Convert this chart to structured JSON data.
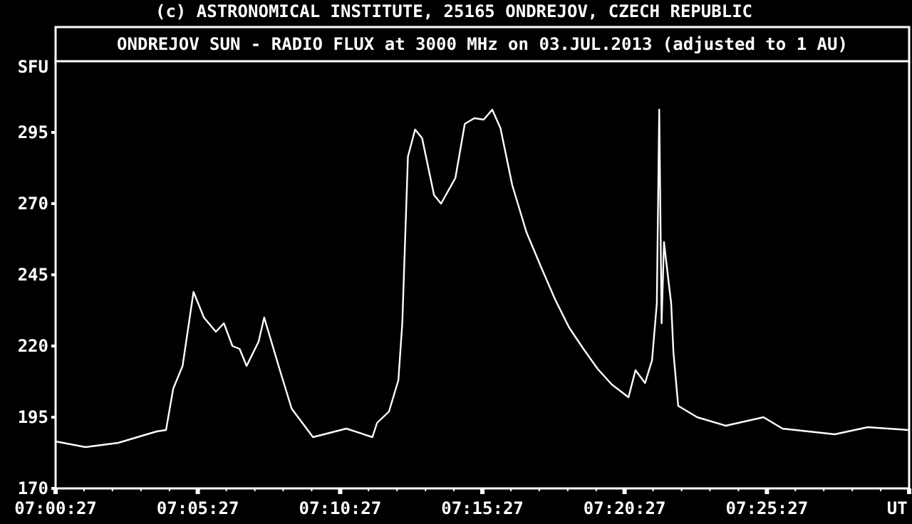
{
  "chart_data": {
    "type": "line",
    "title": "ONDREJOV SUN - RADIO FLUX at 3000 MHz on 03.JUL.2013 (adjusted to 1 AU)",
    "ylabel": "SFU",
    "annotations": [
      "(c) ASTRONOMICAL INSTITUTE, 25165 ONDREJOV, CZECH REPUBLIC"
    ],
    "x": [
      7.0075,
      7.025,
      7.0442,
      7.0667,
      7.0722,
      7.0764,
      7.0819,
      7.0883,
      7.0944,
      7.1014,
      7.1061,
      7.1111,
      7.1153,
      7.1194,
      7.1264,
      7.1297,
      7.1389,
      7.1458,
      7.1583,
      7.1778,
      7.1931,
      7.1958,
      7.2028,
      7.2083,
      7.2106,
      7.2139,
      7.2181,
      7.2222,
      7.2292,
      7.2333,
      7.2417,
      7.2472,
      7.2528,
      7.2583,
      7.2633,
      7.2681,
      7.275,
      7.2833,
      7.2917,
      7.3,
      7.3083,
      7.3167,
      7.325,
      7.3333,
      7.3431,
      7.3472,
      7.3528,
      7.3569,
      7.3597,
      7.3611,
      7.3625,
      7.3639,
      7.3661,
      7.3681,
      7.3694,
      7.3722,
      7.3833,
      7.4,
      7.4222,
      7.4333,
      7.4639,
      7.4833,
      7.5069
    ],
    "series": [
      {
        "color": "#ffffff",
        "values": [
          186.5,
          184.5,
          186,
          190,
          190.5,
          205,
          213,
          239,
          230,
          225,
          228,
          220,
          219,
          213,
          221.5,
          230,
          211.5,
          198,
          188,
          191,
          188,
          193,
          197,
          208,
          228,
          286.5,
          296,
          293,
          273,
          270,
          279,
          298,
          300,
          299.5,
          303,
          296.5,
          276.5,
          260,
          248,
          236.5,
          226.5,
          219,
          212,
          206.5,
          202,
          211.5,
          207,
          215,
          235,
          303,
          228,
          256.5,
          245,
          235,
          218,
          199,
          195,
          192,
          195,
          191,
          189,
          191.5,
          190.5
        ]
      }
    ],
    "xlim": [
      7.0075,
      7.5075
    ],
    "ylim": [
      170,
      320
    ],
    "xticks": [
      {
        "value": 7.0075,
        "label": "07:00:27"
      },
      {
        "value": 7.0242,
        "label": null
      },
      {
        "value": 7.0408,
        "label": null
      },
      {
        "value": 7.0575,
        "label": null
      },
      {
        "value": 7.0742,
        "label": null
      },
      {
        "value": 7.0908,
        "label": "07:05:27"
      },
      {
        "value": 7.1075,
        "label": null
      },
      {
        "value": 7.1242,
        "label": null
      },
      {
        "value": 7.1408,
        "label": null
      },
      {
        "value": 7.1575,
        "label": null
      },
      {
        "value": 7.1742,
        "label": "07:10:27"
      },
      {
        "value": 7.1908,
        "label": null
      },
      {
        "value": 7.2075,
        "label": null
      },
      {
        "value": 7.2242,
        "label": null
      },
      {
        "value": 7.2408,
        "label": null
      },
      {
        "value": 7.2575,
        "label": "07:15:27"
      },
      {
        "value": 7.2742,
        "label": null
      },
      {
        "value": 7.2908,
        "label": null
      },
      {
        "value": 7.3075,
        "label": null
      },
      {
        "value": 7.3242,
        "label": null
      },
      {
        "value": 7.3408,
        "label": "07:20:27"
      },
      {
        "value": 7.3575,
        "label": null
      },
      {
        "value": 7.3742,
        "label": null
      },
      {
        "value": 7.3908,
        "label": null
      },
      {
        "value": 7.4075,
        "label": null
      },
      {
        "value": 7.4242,
        "label": "07:25:27"
      },
      {
        "value": 7.4408,
        "label": null
      },
      {
        "value": 7.4575,
        "label": null
      },
      {
        "value": 7.4742,
        "label": null
      },
      {
        "value": 7.4908,
        "label": null
      },
      {
        "value": 7.5075,
        "label": "UT"
      }
    ],
    "yticks": [
      170,
      195,
      220,
      245,
      270,
      295
    ],
    "marker": "none",
    "line_style": "solid"
  }
}
